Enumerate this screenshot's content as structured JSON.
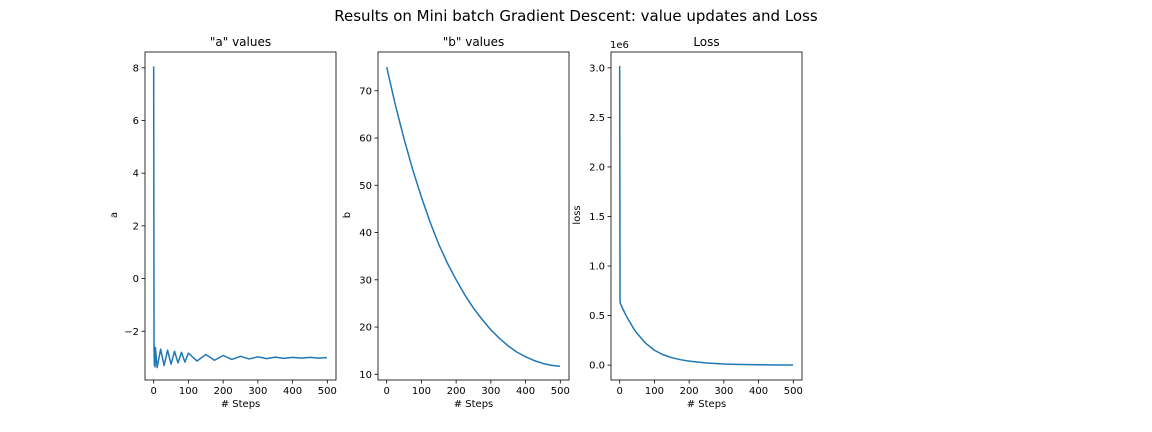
{
  "suptitle": "Results on Mini batch Gradient Descent: value updates and Loss",
  "chart_data": [
    {
      "type": "line",
      "title": "\"a\" values",
      "xlabel": "# Steps",
      "ylabel": "a",
      "xlim": [
        -25,
        525
      ],
      "ylim": [
        -3.85,
        8.6
      ],
      "xticks": [
        0,
        100,
        200,
        300,
        400,
        500
      ],
      "xtick_labels": [
        "0",
        "100",
        "200",
        "300",
        "400",
        "500"
      ],
      "yticks": [
        -2,
        0,
        2,
        4,
        6,
        8
      ],
      "ytick_labels": [
        "−2",
        "0",
        "2",
        "4",
        "6",
        "8"
      ],
      "color": "#1f77b4",
      "series": [
        {
          "name": "",
          "x": [
            0,
            1,
            2,
            3,
            4,
            5,
            10,
            20,
            30,
            40,
            50,
            60,
            70,
            80,
            90,
            100,
            125,
            150,
            175,
            200,
            225,
            250,
            275,
            300,
            325,
            350,
            375,
            400,
            425,
            450,
            475,
            499
          ],
          "y": [
            8.05,
            -2.7,
            -3.3,
            -2.6,
            -3.35,
            -2.62,
            -3.38,
            -2.68,
            -3.3,
            -2.72,
            -3.25,
            -2.76,
            -3.2,
            -2.8,
            -3.17,
            -2.83,
            -3.13,
            -2.88,
            -3.1,
            -2.92,
            -3.07,
            -2.95,
            -3.05,
            -2.97,
            -3.04,
            -2.98,
            -3.03,
            -2.99,
            -3.02,
            -2.99,
            -3.02,
            -3.0
          ]
        }
      ],
      "grid": false
    },
    {
      "type": "line",
      "title": "\"b\" values",
      "xlabel": "# Steps",
      "ylabel": "b",
      "xlim": [
        -25,
        525
      ],
      "ylim": [
        8.8,
        78.2
      ],
      "xticks": [
        0,
        100,
        200,
        300,
        400,
        500
      ],
      "xtick_labels": [
        "0",
        "100",
        "200",
        "300",
        "400",
        "500"
      ],
      "yticks": [
        10,
        20,
        30,
        40,
        50,
        60,
        70
      ],
      "ytick_labels": [
        "10",
        "20",
        "30",
        "40",
        "50",
        "60",
        "70"
      ],
      "color": "#1f77b4",
      "series": [
        {
          "name": "",
          "x": [
            0,
            25,
            50,
            75,
            100,
            125,
            150,
            175,
            200,
            225,
            250,
            275,
            300,
            325,
            350,
            375,
            400,
            425,
            450,
            475,
            499
          ],
          "y": [
            75.0,
            67.0,
            59.8,
            53.3,
            47.5,
            42.2,
            37.5,
            33.5,
            30.0,
            26.8,
            24.0,
            21.6,
            19.4,
            17.6,
            16.0,
            14.7,
            13.7,
            12.9,
            12.3,
            11.9,
            11.7
          ]
        }
      ],
      "grid": false
    },
    {
      "type": "line",
      "title": "Loss",
      "xlabel": "# Steps",
      "ylabel": "loss",
      "offset_label": "1e6",
      "xlim": [
        -25,
        525
      ],
      "ylim": [
        -0.15,
        3.16
      ],
      "xticks": [
        0,
        100,
        200,
        300,
        400,
        500
      ],
      "xtick_labels": [
        "0",
        "100",
        "200",
        "300",
        "400",
        "500"
      ],
      "yticks": [
        0.0,
        0.5,
        1.0,
        1.5,
        2.0,
        2.5,
        3.0
      ],
      "ytick_labels": [
        "0.0",
        "0.5",
        "1.0",
        "1.5",
        "2.0",
        "2.5",
        "3.0"
      ],
      "color": "#1f77b4",
      "series": [
        {
          "name": "",
          "x": [
            0,
            1,
            2,
            5,
            10,
            20,
            30,
            40,
            50,
            60,
            75,
            100,
            125,
            150,
            175,
            200,
            250,
            300,
            350,
            400,
            450,
            499
          ],
          "y": [
            3.02,
            0.64,
            0.62,
            0.6,
            0.56,
            0.49,
            0.43,
            0.37,
            0.32,
            0.28,
            0.22,
            0.15,
            0.105,
            0.075,
            0.055,
            0.04,
            0.022,
            0.012,
            0.007,
            0.004,
            0.002,
            0.001
          ]
        }
      ],
      "grid": false
    }
  ]
}
